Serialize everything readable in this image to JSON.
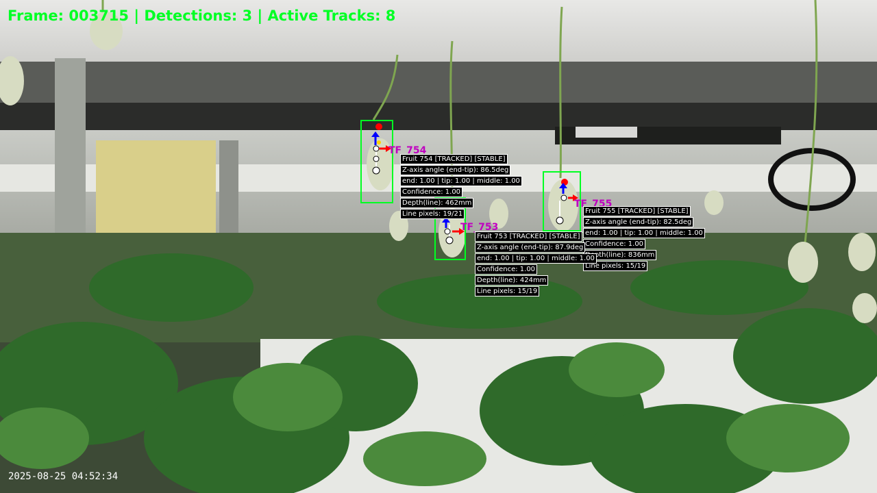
{
  "hud": {
    "status": "Frame: 003715 | Detections: 3 | Active Tracks: 8",
    "timestamp": "2025-08-25 04:52:34"
  },
  "tracks": [
    {
      "tag": "TF_754",
      "lines": [
        "Fruit 754 [TRACKED] [STABLE]",
        "Z-axis angle (end-tip): 86.5deg",
        "end: 1.00 | tip: 1.00 | middle: 1.00",
        "Confidence: 1.00",
        "Depth(line): 462mm",
        "Line pixels: 19/21"
      ]
    },
    {
      "tag": "TF_753",
      "lines": [
        "Fruit 753 [TRACKED] [STABLE]",
        "Z-axis angle (end-tip): 87.9deg",
        "end: 1.00 | tip: 1.00 | middle: 1.00",
        "Confidence: 1.00",
        "Depth(line): 424mm",
        "Line pixels: 15/19"
      ]
    },
    {
      "tag": "TF_755",
      "lines": [
        "Fruit 755 [TRACKED] [STABLE]",
        "Z-axis angle (end-tip): 82.5deg",
        "end: 1.00 | tip: 1.00 | middle: 1.00",
        "Confidence: 1.00",
        "Depth(line): 836mm",
        "Line pixels: 15/19"
      ]
    }
  ],
  "colors": {
    "box": "#00ff22",
    "hud": "#00ff24",
    "tag": "#c000c0",
    "end": "#ff0000",
    "axis_up": "#0000ff",
    "axis_right": "#ff0000",
    "point": "#ffffff"
  }
}
